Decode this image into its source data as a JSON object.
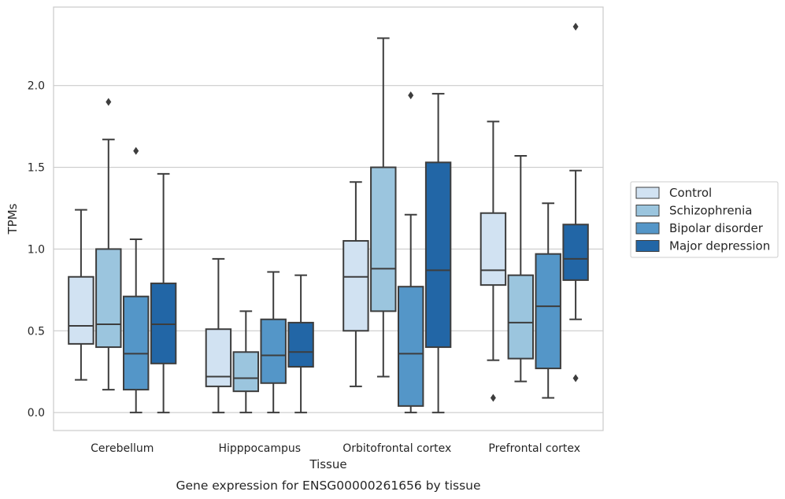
{
  "chart_data": {
    "type": "boxplot",
    "caption": "Gene expression for ENSG00000261656 by tissue",
    "xlabel": "Tissue",
    "ylabel": "TPMs",
    "ylim": [
      -0.11,
      2.48
    ],
    "yticks": [
      0.0,
      0.5,
      1.0,
      1.5,
      2.0
    ],
    "ytick_labels": [
      "0.0",
      "0.5",
      "1.0",
      "1.5",
      "2.0"
    ],
    "grid": "horizontal",
    "legend_position": "right",
    "categories": [
      "Cerebellum",
      "Hipppocampus",
      "Orbitofrontal cortex",
      "Prefrontal cortex"
    ],
    "series": [
      {
        "name": "Control",
        "color": "#d1e2f2",
        "boxes": [
          {
            "whisker_low": 0.2,
            "q1": 0.42,
            "median": 0.53,
            "q3": 0.83,
            "whisker_high": 1.24,
            "outliers": []
          },
          {
            "whisker_low": 0.0,
            "q1": 0.16,
            "median": 0.22,
            "q3": 0.51,
            "whisker_high": 0.94,
            "outliers": []
          },
          {
            "whisker_low": 0.16,
            "q1": 0.5,
            "median": 0.83,
            "q3": 1.05,
            "whisker_high": 1.41,
            "outliers": []
          },
          {
            "whisker_low": 0.32,
            "q1": 0.78,
            "median": 0.87,
            "q3": 1.22,
            "whisker_high": 1.78,
            "outliers": [
              0.09
            ]
          }
        ]
      },
      {
        "name": "Schizophrenia",
        "color": "#9bc5de",
        "boxes": [
          {
            "whisker_low": 0.14,
            "q1": 0.4,
            "median": 0.54,
            "q3": 1.0,
            "whisker_high": 1.67,
            "outliers": [
              1.9
            ]
          },
          {
            "whisker_low": 0.0,
            "q1": 0.13,
            "median": 0.21,
            "q3": 0.37,
            "whisker_high": 0.62,
            "outliers": []
          },
          {
            "whisker_low": 0.22,
            "q1": 0.62,
            "median": 0.88,
            "q3": 1.5,
            "whisker_high": 2.29,
            "outliers": []
          },
          {
            "whisker_low": 0.19,
            "q1": 0.33,
            "median": 0.55,
            "q3": 0.84,
            "whisker_high": 1.57,
            "outliers": []
          }
        ]
      },
      {
        "name": "Bipolar disorder",
        "color": "#5496c8",
        "boxes": [
          {
            "whisker_low": 0.0,
            "q1": 0.14,
            "median": 0.36,
            "q3": 0.71,
            "whisker_high": 1.06,
            "outliers": [
              1.6
            ]
          },
          {
            "whisker_low": 0.0,
            "q1": 0.18,
            "median": 0.35,
            "q3": 0.57,
            "whisker_high": 0.86,
            "outliers": []
          },
          {
            "whisker_low": 0.0,
            "q1": 0.04,
            "median": 0.36,
            "q3": 0.77,
            "whisker_high": 1.21,
            "outliers": [
              1.94
            ]
          },
          {
            "whisker_low": 0.09,
            "q1": 0.27,
            "median": 0.65,
            "q3": 0.97,
            "whisker_high": 1.28,
            "outliers": []
          }
        ]
      },
      {
        "name": "Major depression",
        "color": "#2266a6",
        "boxes": [
          {
            "whisker_low": 0.0,
            "q1": 0.3,
            "median": 0.54,
            "q3": 0.79,
            "whisker_high": 1.46,
            "outliers": []
          },
          {
            "whisker_low": 0.0,
            "q1": 0.28,
            "median": 0.37,
            "q3": 0.55,
            "whisker_high": 0.84,
            "outliers": []
          },
          {
            "whisker_low": 0.0,
            "q1": 0.4,
            "median": 0.87,
            "q3": 1.53,
            "whisker_high": 1.95,
            "outliers": []
          },
          {
            "whisker_low": 0.57,
            "q1": 0.81,
            "median": 0.94,
            "q3": 1.15,
            "whisker_high": 1.48,
            "outliers": [
              2.36,
              0.21
            ]
          }
        ]
      }
    ]
  }
}
